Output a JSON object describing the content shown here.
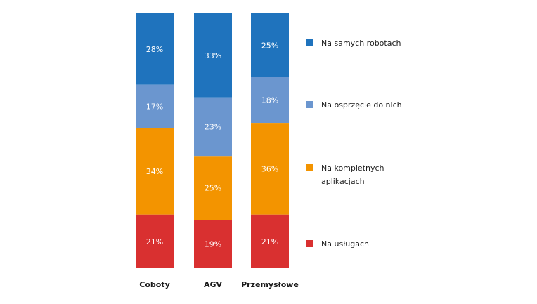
{
  "chart_data": {
    "type": "bar",
    "stacked": true,
    "normalized_percent": true,
    "title": "",
    "xlabel": "",
    "ylabel": "",
    "categories": [
      "Coboty",
      "AGV",
      "Przemysłowe"
    ],
    "series": [
      {
        "name": "Na samych robotach",
        "color": "#1f73bd",
        "values": [
          28,
          33,
          25
        ]
      },
      {
        "name": "Na osprzęcie do nich",
        "color": "#6b96cf",
        "values": [
          17,
          23,
          18
        ]
      },
      {
        "name": "Na kompletnych aplikacjach",
        "color": "#f39400",
        "values": [
          34,
          25,
          36
        ]
      },
      {
        "name": "Na usługach",
        "color": "#d93030",
        "values": [
          21,
          19,
          21
        ]
      }
    ],
    "value_suffix": "%",
    "legend_position": "right",
    "grid": false
  }
}
